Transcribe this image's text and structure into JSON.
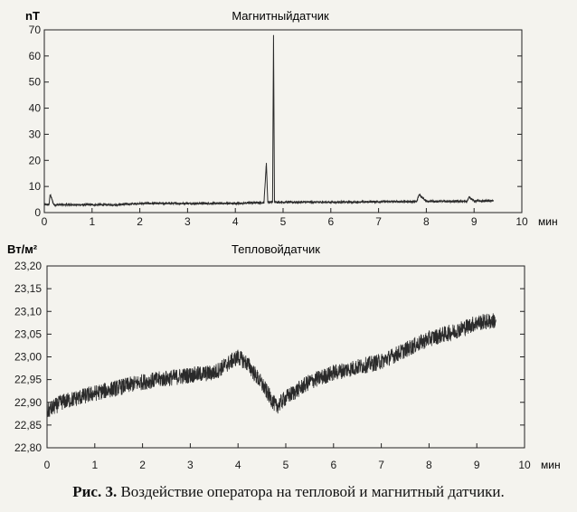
{
  "caption": {
    "label": "Рис. 3.",
    "text": "Воздействие оператора на тепловой и магнитный датчики."
  },
  "chart_data": [
    {
      "type": "line",
      "title": "Магнитныйдатчик",
      "ylabel": "nT",
      "xlabel": "мин",
      "xlim": [
        0,
        10
      ],
      "ylim": [
        0,
        70
      ],
      "xticks": [
        "0",
        "1",
        "2",
        "3",
        "4",
        "5",
        "6",
        "7",
        "8",
        "9",
        "10"
      ],
      "yticks": [
        "0",
        "10",
        "20",
        "30",
        "40",
        "50",
        "60",
        "70"
      ],
      "series": [
        {
          "x": [
            0,
            0.1,
            0.12,
            0.2,
            0.5,
            1,
            1.5,
            2,
            2.5,
            3,
            3.5,
            4,
            4.5,
            4.6,
            4.65,
            4.68,
            4.72,
            4.78,
            4.8,
            4.82,
            4.9,
            5,
            5.5,
            6,
            6.5,
            7,
            7.5,
            7.8,
            7.85,
            8,
            8.5,
            8.85,
            8.9,
            9,
            9.4
          ],
          "y": [
            3,
            3,
            7,
            3,
            3,
            3,
            3,
            3.5,
            3.5,
            3.5,
            3.5,
            3.5,
            3.8,
            3.8,
            19,
            4,
            4,
            4,
            68,
            4,
            4,
            4,
            4,
            4,
            4,
            4.2,
            4.2,
            4.2,
            7,
            4.3,
            4.3,
            4.3,
            6,
            4.4,
            4.5
          ]
        }
      ],
      "grid": false
    },
    {
      "type": "line",
      "title": "Тепловойдатчик",
      "ylabel": "Вт/м²",
      "xlabel": "мин",
      "xlim": [
        0,
        10
      ],
      "ylim": [
        22.8,
        23.2
      ],
      "xticks": [
        "0",
        "1",
        "2",
        "3",
        "4",
        "5",
        "6",
        "7",
        "8",
        "9",
        "10"
      ],
      "yticks": [
        "22,80",
        "22,85",
        "22,90",
        "22,95",
        "23,00",
        "23,05",
        "23,10",
        "23,15",
        "23,20"
      ],
      "series": [
        {
          "x": [
            0,
            0.3,
            1,
            2,
            3,
            3.5,
            4,
            4.2,
            4.5,
            4.8,
            5,
            5.5,
            6,
            7,
            8,
            8.5,
            9,
            9.4
          ],
          "y": [
            22.88,
            22.9,
            22.92,
            22.945,
            22.96,
            22.965,
            23.0,
            22.985,
            22.94,
            22.89,
            22.91,
            22.945,
            22.965,
            22.99,
            23.04,
            23.055,
            23.075,
            23.08
          ]
        }
      ],
      "grid": false
    }
  ]
}
